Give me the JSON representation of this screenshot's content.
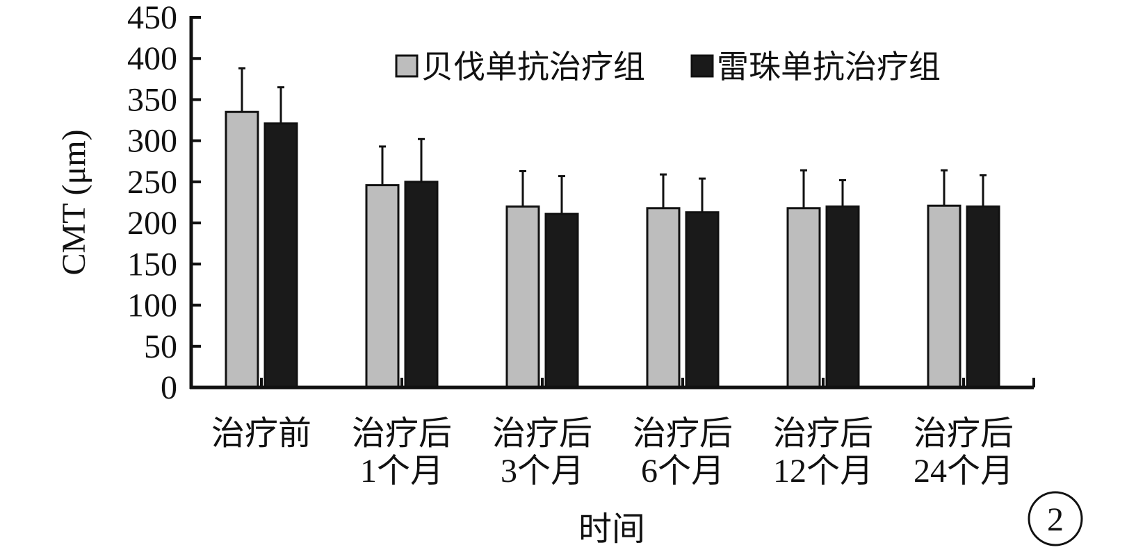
{
  "chart_data": {
    "type": "bar",
    "xlabel": "时间",
    "ylabel": "CMT (μm)",
    "ylim": [
      0,
      450
    ],
    "yticks": [
      0,
      50,
      100,
      150,
      200,
      250,
      300,
      350,
      400,
      450
    ],
    "grid": false,
    "legend_position": "top-right",
    "categories": [
      [
        "治疗前"
      ],
      [
        "治疗后",
        "1个月"
      ],
      [
        "治疗后",
        "3个月"
      ],
      [
        "治疗后",
        "6个月"
      ],
      [
        "治疗后",
        "12个月"
      ],
      [
        "治疗后",
        "24个月"
      ]
    ],
    "series": [
      {
        "name": "贝伐单抗治疗组",
        "color": "#bdbdbd",
        "values": [
          335,
          246,
          220,
          218,
          218,
          221
        ],
        "error": [
          53,
          47,
          43,
          41,
          46,
          43
        ]
      },
      {
        "name": "雷珠单抗治疗组",
        "color": "#1a1a1a",
        "values": [
          321,
          250,
          211,
          213,
          220,
          220
        ],
        "error": [
          44,
          52,
          46,
          41,
          32,
          38
        ]
      }
    ]
  },
  "panel_label": "2"
}
